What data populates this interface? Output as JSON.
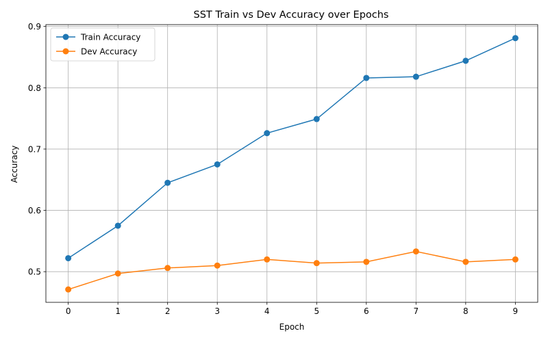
{
  "chart_data": {
    "type": "line",
    "title": "SST Train vs Dev Accuracy over Epochs",
    "xlabel": "Epoch",
    "ylabel": "Accuracy",
    "x": [
      0,
      1,
      2,
      3,
      4,
      5,
      6,
      7,
      8,
      9
    ],
    "xlim": [
      -0.45,
      9.45
    ],
    "ylim": [
      0.45,
      0.903
    ],
    "xticks": [
      "0",
      "1",
      "2",
      "3",
      "4",
      "5",
      "6",
      "7",
      "8",
      "9"
    ],
    "yticks": [
      0.5,
      0.6,
      0.7,
      0.8,
      0.9
    ],
    "ytick_labels": [
      "0.5",
      "0.6",
      "0.7",
      "0.8",
      "0.9"
    ],
    "grid": true,
    "legend_position": "top-left",
    "series": [
      {
        "name": "Train Accuracy",
        "color": "#1f77b4",
        "marker": "circle",
        "values": [
          0.522,
          0.575,
          0.645,
          0.675,
          0.726,
          0.749,
          0.816,
          0.818,
          0.844,
          0.881
        ]
      },
      {
        "name": "Dev Accuracy",
        "color": "#ff7f0e",
        "marker": "circle",
        "values": [
          0.471,
          0.497,
          0.506,
          0.51,
          0.52,
          0.514,
          0.516,
          0.533,
          0.516,
          0.52
        ]
      }
    ]
  }
}
